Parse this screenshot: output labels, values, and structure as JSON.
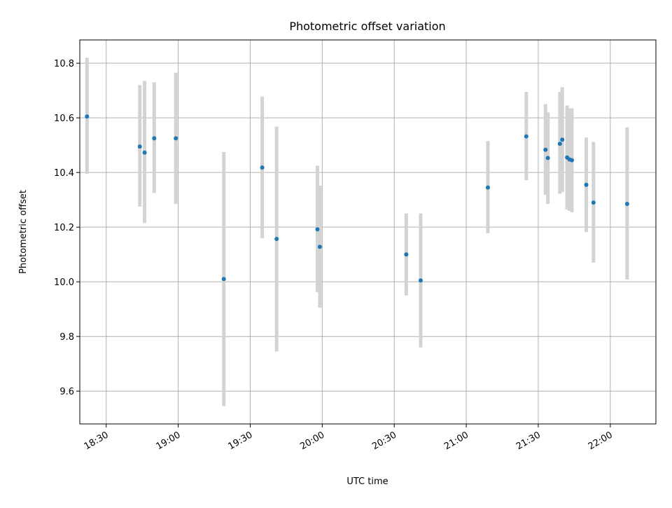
{
  "chart_data": {
    "type": "scatter",
    "title": "Photometric offset variation",
    "xlabel": "UTC time",
    "ylabel": "Photometric offset",
    "xlim": [
      "18:19",
      "22:19"
    ],
    "ylim": [
      9.48,
      10.885
    ],
    "x_ticks": [
      "18:30",
      "19:00",
      "19:30",
      "20:00",
      "20:30",
      "21:00",
      "21:30",
      "22:00"
    ],
    "y_ticks": [
      "9.6",
      "9.8",
      "10.0",
      "10.2",
      "10.4",
      "10.6",
      "10.8"
    ],
    "grid": true,
    "marker_color": "#1f77b4",
    "errorbar_color": "#d3d3d3",
    "grid_color": "#b0b0b0",
    "points": [
      {
        "t": "18:22",
        "y": 10.605,
        "lo": 10.395,
        "hi": 10.82
      },
      {
        "t": "18:44",
        "y": 10.495,
        "lo": 10.275,
        "hi": 10.72
      },
      {
        "t": "18:46",
        "y": 10.473,
        "lo": 10.215,
        "hi": 10.735
      },
      {
        "t": "18:50",
        "y": 10.525,
        "lo": 10.325,
        "hi": 10.73
      },
      {
        "t": "18:59",
        "y": 10.525,
        "lo": 10.285,
        "hi": 10.765
      },
      {
        "t": "19:19",
        "y": 10.01,
        "lo": 9.545,
        "hi": 10.475
      },
      {
        "t": "19:35",
        "y": 10.418,
        "lo": 10.16,
        "hi": 10.678
      },
      {
        "t": "19:41",
        "y": 10.157,
        "lo": 9.745,
        "hi": 10.568
      },
      {
        "t": "19:58",
        "y": 10.192,
        "lo": 9.962,
        "hi": 10.425
      },
      {
        "t": "19:59",
        "y": 10.128,
        "lo": 9.905,
        "hi": 10.352
      },
      {
        "t": "20:35",
        "y": 10.1,
        "lo": 9.95,
        "hi": 10.25
      },
      {
        "t": "20:41",
        "y": 10.005,
        "lo": 9.76,
        "hi": 10.25
      },
      {
        "t": "21:09",
        "y": 10.345,
        "lo": 10.178,
        "hi": 10.515
      },
      {
        "t": "21:25",
        "y": 10.532,
        "lo": 10.372,
        "hi": 10.695
      },
      {
        "t": "21:33",
        "y": 10.483,
        "lo": 10.318,
        "hi": 10.65
      },
      {
        "t": "21:34",
        "y": 10.453,
        "lo": 10.285,
        "hi": 10.62
      },
      {
        "t": "21:39",
        "y": 10.505,
        "lo": 10.322,
        "hi": 10.695
      },
      {
        "t": "21:40",
        "y": 10.52,
        "lo": 10.328,
        "hi": 10.712
      },
      {
        "t": "21:42",
        "y": 10.455,
        "lo": 10.265,
        "hi": 10.645
      },
      {
        "t": "21:43",
        "y": 10.448,
        "lo": 10.26,
        "hi": 10.635
      },
      {
        "t": "21:44",
        "y": 10.445,
        "lo": 10.255,
        "hi": 10.635
      },
      {
        "t": "21:50",
        "y": 10.355,
        "lo": 10.182,
        "hi": 10.528
      },
      {
        "t": "21:53",
        "y": 10.29,
        "lo": 10.07,
        "hi": 10.512
      },
      {
        "t": "22:07",
        "y": 10.285,
        "lo": 10.008,
        "hi": 10.565
      }
    ]
  }
}
